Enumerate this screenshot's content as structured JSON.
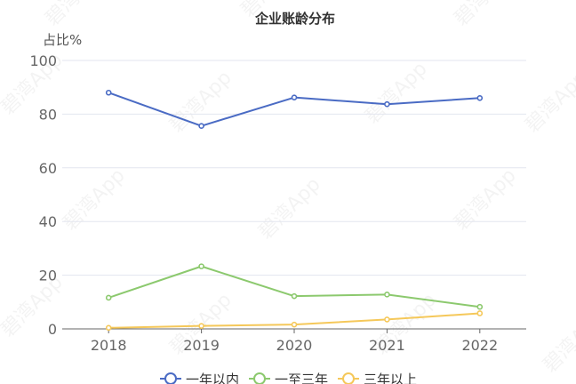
{
  "watermark": "碧湾App",
  "chart_data": {
    "type": "line",
    "title": "企业账龄分布",
    "ylabel": "占比%",
    "xlabel": "",
    "categories": [
      "2018",
      "2019",
      "2020",
      "2021",
      "2022"
    ],
    "ylim": [
      0,
      100
    ],
    "yticks": [
      0,
      20,
      40,
      60,
      80,
      100
    ],
    "grid": true,
    "legend_position": "bottom",
    "series": [
      {
        "name": "一年以内",
        "color": "#4a6bc4",
        "values": [
          88.0,
          75.6,
          86.2,
          83.7,
          86.0
        ]
      },
      {
        "name": "一至三年",
        "color": "#8cc96e",
        "values": [
          11.6,
          23.3,
          12.2,
          12.8,
          8.2
        ]
      },
      {
        "name": "三年以上",
        "color": "#f5c85a",
        "values": [
          0.4,
          1.1,
          1.6,
          3.5,
          5.8
        ]
      }
    ]
  }
}
